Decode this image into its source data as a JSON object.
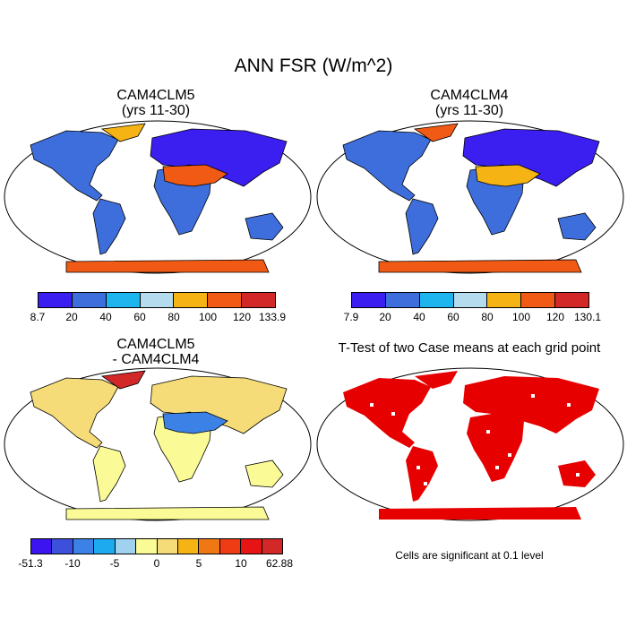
{
  "main_title": "ANN FSR (W/m^2)",
  "panels": {
    "p1": {
      "title1": "CAM4CLM5",
      "title2": "(yrs 11-30)"
    },
    "p2": {
      "title1": "CAM4CLM4",
      "title2": "(yrs 11-30)"
    },
    "p3": {
      "title1": "CAM4CLM5",
      "title2": "- CAM4CLM4"
    },
    "p4": {
      "title1": "T-Test of two Case means at each grid point"
    }
  },
  "colorbars": {
    "cb1": {
      "colors": [
        "#3b1ef0",
        "#3d6edc",
        "#1eb4ee",
        "#b4dcee",
        "#f5b414",
        "#f05a14",
        "#d22828"
      ],
      "labels": [
        "8.7",
        "20",
        "40",
        "60",
        "80",
        "100",
        "120",
        "133.9"
      ]
    },
    "cb2": {
      "colors": [
        "#3b1ef0",
        "#3d6edc",
        "#1eb4ee",
        "#b4dcee",
        "#f5b414",
        "#f05a14",
        "#d22828"
      ],
      "labels": [
        "7.9",
        "20",
        "40",
        "60",
        "80",
        "100",
        "120",
        "130.1"
      ]
    },
    "cb3": {
      "colors": [
        "#3c14f0",
        "#3c50dc",
        "#3c82e6",
        "#1eaaee",
        "#a0d2f0",
        "#fafa96",
        "#f5dc78",
        "#f5b414",
        "#f07814",
        "#f03c14",
        "#e61414",
        "#d22828"
      ],
      "labels": [
        "-51.3",
        "-10",
        "-5",
        "0",
        "5",
        "10",
        "62.88"
      ]
    }
  },
  "note": "Cells are significant at 0.1 level"
}
